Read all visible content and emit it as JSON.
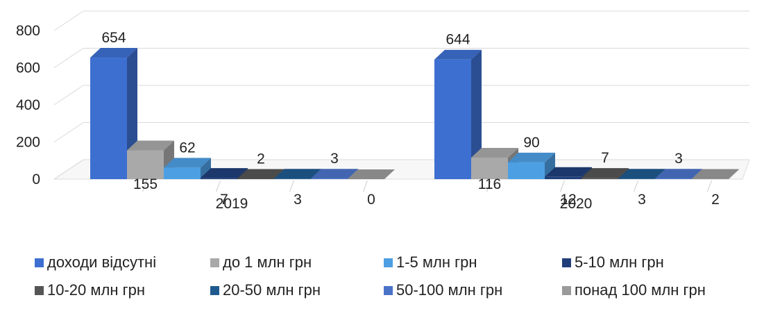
{
  "chart_data": {
    "type": "bar",
    "subtype": "3d-clustered",
    "categories": [
      "2019",
      "2020"
    ],
    "series": [
      {
        "name": "доходи відсутні",
        "values": [
          654,
          644
        ],
        "color": "#3d6fd1"
      },
      {
        "name": "до 1 млн грн",
        "values": [
          155,
          116
        ],
        "color": "#a9a9a9"
      },
      {
        "name": "1-5 млн грн",
        "values": [
          62,
          90
        ],
        "color": "#4d9fe3"
      },
      {
        "name": "5-10 млн грн",
        "values": [
          7,
          12
        ],
        "color": "#203f7a"
      },
      {
        "name": "10-20 млн грн",
        "values": [
          2,
          7
        ],
        "color": "#555555"
      },
      {
        "name": "20-50 млн грн",
        "values": [
          3,
          3
        ],
        "color": "#1f5a8f"
      },
      {
        "name": "50-100 млн грн",
        "values": [
          3,
          3
        ],
        "color": "#4a73c8"
      },
      {
        "name": "понад 100 млн грн",
        "values": [
          0,
          2
        ],
        "color": "#9a9a9a"
      }
    ],
    "y_ticks": [
      "0",
      "200",
      "400",
      "600",
      "800"
    ],
    "ylim": [
      0,
      800
    ],
    "grid": true,
    "legend_position": "bottom"
  }
}
